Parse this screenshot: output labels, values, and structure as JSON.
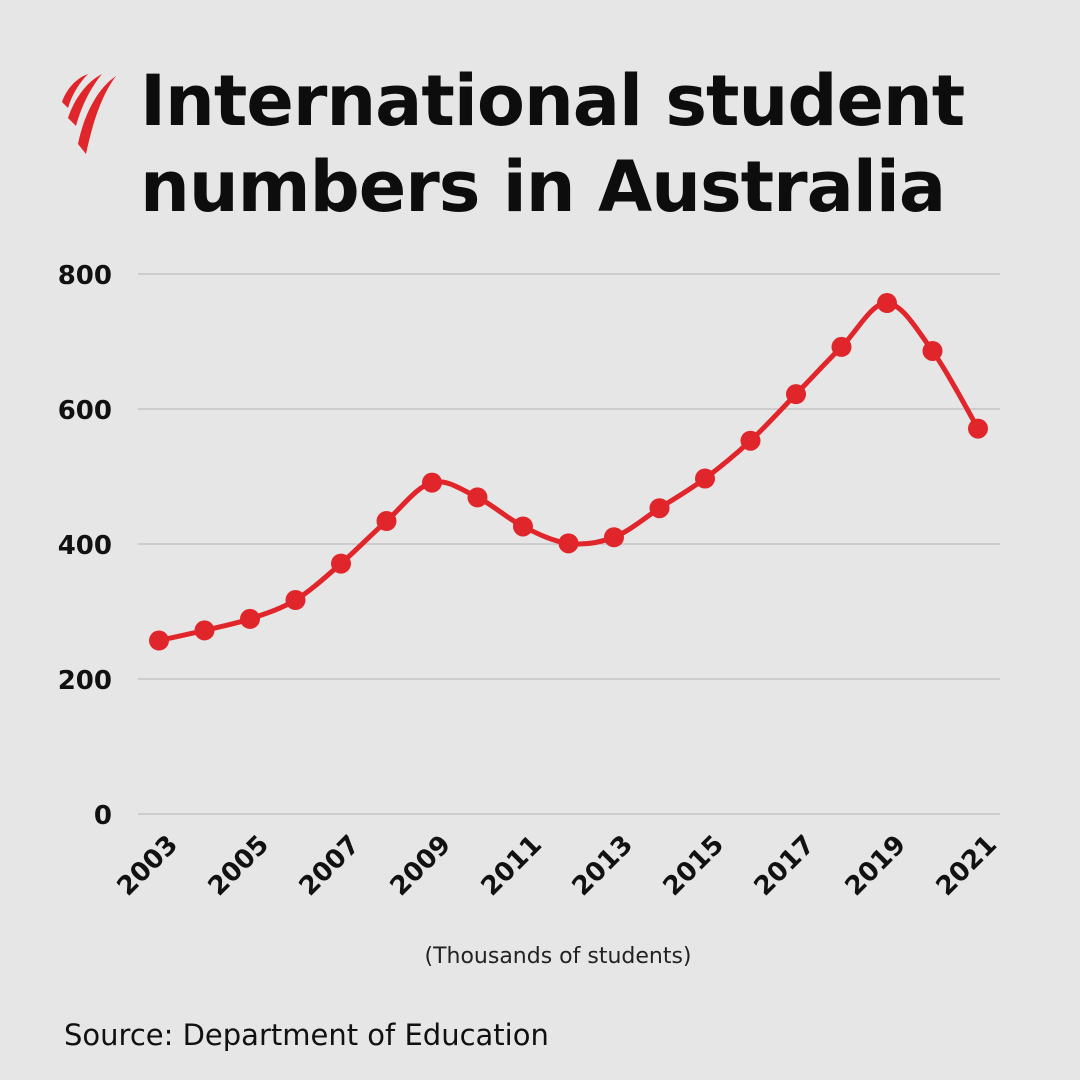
{
  "title": "International student numbers in Australia",
  "subtitle": "(Thousands of students)",
  "source": "Source: Department of Education",
  "colors": {
    "background": "#e6e6e6",
    "line": "#e0262b",
    "grid": "#b4b4b4",
    "text": "#111111"
  },
  "logo_icon": "sbs-red-wave-logo",
  "chart_data": {
    "type": "line",
    "x": [
      2003,
      2004,
      2005,
      2006,
      2007,
      2008,
      2009,
      2010,
      2011,
      2012,
      2013,
      2014,
      2015,
      2016,
      2017,
      2018,
      2019,
      2020,
      2021
    ],
    "x_tick_labels": [
      "2003",
      "2005",
      "2007",
      "2009",
      "2011",
      "2013",
      "2015",
      "2017",
      "2019",
      "2021"
    ],
    "series": [
      {
        "values": [
          257,
          272,
          289,
          317,
          371,
          434,
          491,
          469,
          426,
          401,
          410,
          453,
          497,
          553,
          622,
          692,
          757,
          686,
          571
        ]
      }
    ],
    "y_ticks": [
      0,
      200,
      400,
      600,
      800
    ],
    "ylim": [
      0,
      800
    ],
    "grid": true,
    "legend": "none"
  }
}
